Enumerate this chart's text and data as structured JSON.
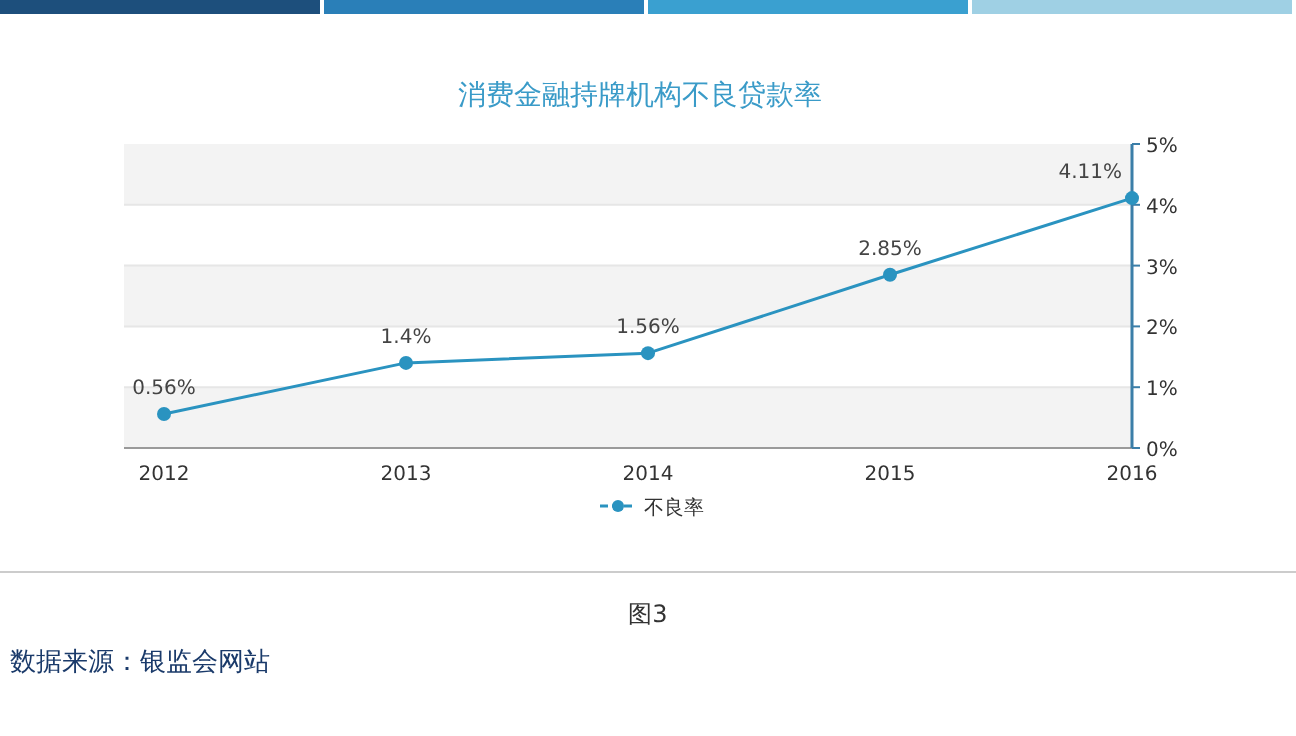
{
  "chart_data": {
    "type": "line",
    "title": "消费金融持牌机构不良贷款率",
    "categories": [
      "2012",
      "2013",
      "2014",
      "2015",
      "2016"
    ],
    "series": [
      {
        "name": "不良率",
        "color": "#2a93c0",
        "values": [
          0.56,
          1.4,
          1.56,
          2.85,
          4.11
        ],
        "value_labels": [
          "0.56%",
          "1.4%",
          "1.56%",
          "2.85%",
          "4.11%"
        ]
      }
    ],
    "ylim": [
      0,
      5
    ],
    "yticks": [
      {
        "value": 0,
        "label": "0%"
      },
      {
        "value": 1,
        "label": "1%"
      },
      {
        "value": 2,
        "label": "2%"
      },
      {
        "value": 3,
        "label": "3%"
      },
      {
        "value": 4,
        "label": "4%"
      },
      {
        "value": 5,
        "label": "5%"
      }
    ],
    "grid": "y",
    "legend": "bottom",
    "marker": "circle",
    "line_style": "solid",
    "annotations": [
      "图3",
      "数据来源：银监会网站"
    ]
  }
}
